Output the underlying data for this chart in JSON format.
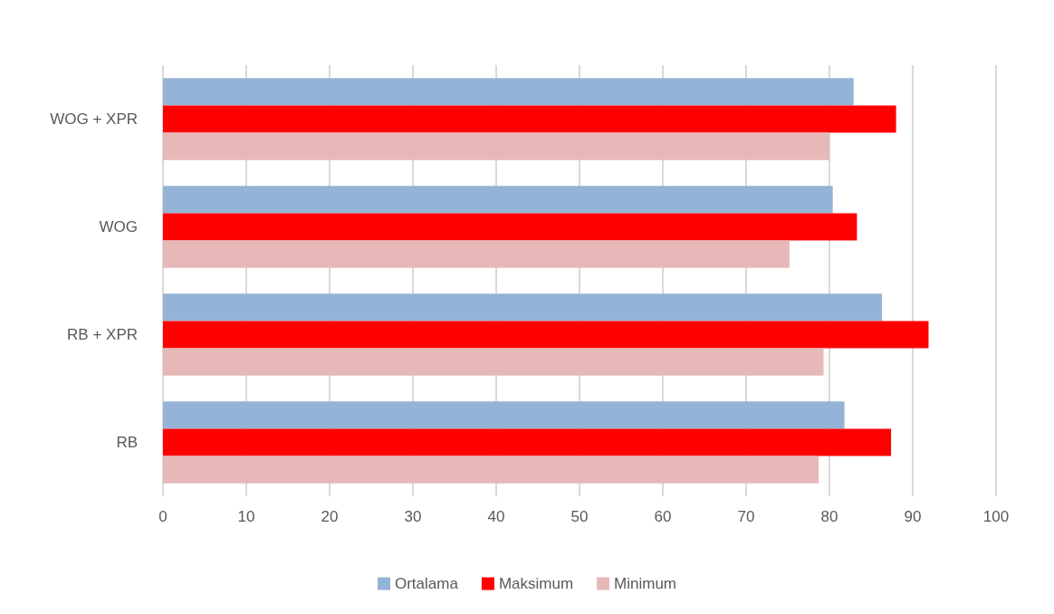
{
  "chart_data": {
    "type": "bar",
    "orientation": "horizontal",
    "categories": [
      "WOG + XPR",
      "WOG",
      "RB + XPR",
      "RB"
    ],
    "series": [
      {
        "name": "Ortalama",
        "color": "#95b3d7",
        "values": [
          82.9,
          80.4,
          86.3,
          81.8
        ]
      },
      {
        "name": "Maksimum",
        "color": "#ff0000",
        "values": [
          88,
          83.3,
          91.9,
          87.4
        ]
      },
      {
        "name": "Minimum",
        "color": "#e6b9b8",
        "values": [
          80,
          75.2,
          79.3,
          78.7
        ]
      }
    ],
    "xlim": [
      0,
      100
    ],
    "xticks": [
      0,
      10,
      20,
      30,
      40,
      50,
      60,
      70,
      80,
      90,
      100
    ],
    "grid": "x",
    "legend": "bottom"
  }
}
